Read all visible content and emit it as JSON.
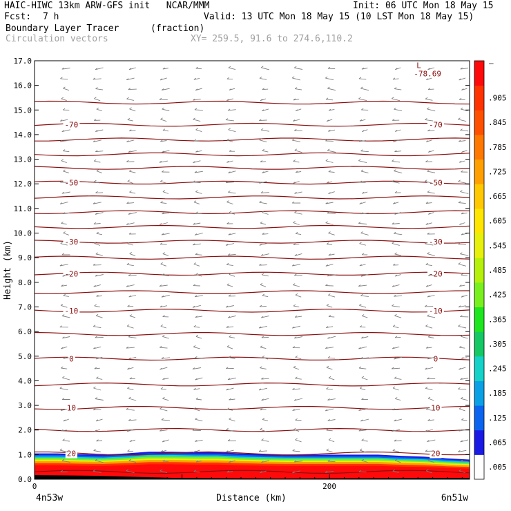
{
  "header": {
    "title_left": "HAIC-HIWC 13km ARW-GFS init   NCAR/MMM",
    "init": "Init: 06 UTC Mon 18 May 15",
    "fcst_label": "Fcst:",
    "fcst_value": "7 h",
    "valid": "Valid: 13 UTC Mon 18 May 15 (10 LST Mon 18 May 15)",
    "field_name": "Boundary Layer Tracer",
    "field_units": "(fraction)",
    "vector_name": "Circulation vectors",
    "xy_range": "XY= 259.5, 91.6 to 274.6,110.2"
  },
  "chart_data": {
    "type": "heatmap",
    "xlabel": "Distance (km)",
    "ylabel": "Height (km)",
    "xlim": [
      0,
      295
    ],
    "ylim": [
      0,
      17
    ],
    "x_ticks": [
      {
        "value": 0,
        "label": "0"
      },
      {
        "value": 200,
        "label": "200"
      }
    ],
    "y_ticks": [
      "0.0",
      "1.0",
      "2.0",
      "3.0",
      "4.0",
      "5.0",
      "6.0",
      "7.0",
      "8.0",
      "9.0",
      "10.0",
      "11.0",
      "12.0",
      "13.0",
      "14.0",
      "15.0",
      "16.0",
      "17.0"
    ],
    "x_endpoint_labels": {
      "left": "4n53w",
      "right": "6n51w"
    },
    "colorbar": {
      "labels": [
        ".005",
        ".065",
        ".125",
        ".185",
        ".245",
        ".305",
        ".365",
        ".425",
        ".485",
        ".545",
        ".605",
        ".665",
        ".725",
        ".785",
        ".845",
        ".905"
      ],
      "top_label": "–",
      "colors": [
        "#ffffff",
        "#1a1ae6",
        "#0a64f0",
        "#0aa0e6",
        "#14d2c8",
        "#14c864",
        "#1ee61e",
        "#78f01e",
        "#b4f00a",
        "#e6f00a",
        "#ffe600",
        "#ffc800",
        "#ffa000",
        "#ff7800",
        "#ff5000",
        "#ff3200",
        "#ff0a0a"
      ]
    },
    "isotherm_color": "#8b1010",
    "isotherm_levels": [
      {
        "h": 0.3
      },
      {
        "h": 1.05,
        "label": "20"
      },
      {
        "h": 2.0
      },
      {
        "h": 2.9,
        "label": "10"
      },
      {
        "h": 3.85
      },
      {
        "h": 4.9,
        "label": "0"
      },
      {
        "h": 5.9
      },
      {
        "h": 6.85,
        "label": "-10"
      },
      {
        "h": 7.6
      },
      {
        "h": 8.35,
        "label": "-20"
      },
      {
        "h": 9.0
      },
      {
        "h": 9.65,
        "label": "-30"
      },
      {
        "h": 10.25
      },
      {
        "h": 10.85
      },
      {
        "h": 11.45
      },
      {
        "h": 12.05,
        "label": "-50"
      },
      {
        "h": 12.65
      },
      {
        "h": 13.2
      },
      {
        "h": 13.8
      },
      {
        "h": 14.4,
        "label": "-70"
      },
      {
        "h": 15.3
      }
    ],
    "low_marker": {
      "x": 260,
      "h": 16.7,
      "symbol": "L",
      "value": "-78.69"
    },
    "tracer_layer_top_km": [
      1.05,
      1.05,
      1.02,
      1.0,
      1.05,
      1.12,
      1.12,
      1.1,
      1.1,
      1.05,
      1.02,
      1.0,
      1.0,
      1.0,
      1.0,
      1.0,
      0.95,
      0.92,
      0.85,
      0.8
    ],
    "vectors": {
      "color": "#808080",
      "direction": "westward"
    }
  }
}
